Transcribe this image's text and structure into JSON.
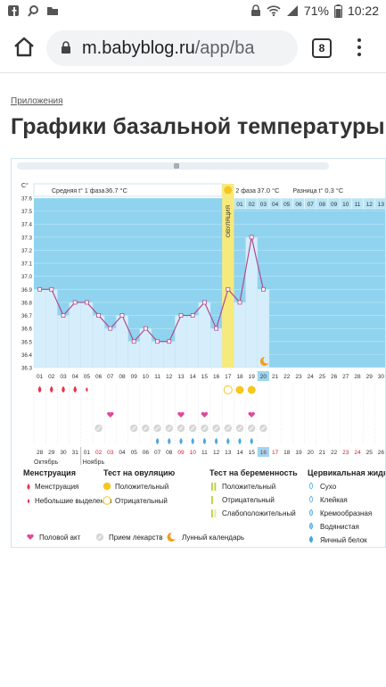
{
  "status_bar": {
    "battery": "71%",
    "time": "10:22"
  },
  "browser": {
    "url_main": "m.babyblog.ru",
    "url_rest": "/app/ba",
    "tab_count": "8"
  },
  "page": {
    "breadcrumb": "Приложения",
    "title": "Графики базальной температуры"
  },
  "chart_data": {
    "type": "line",
    "y_unit": "C°",
    "ylim": [
      36.3,
      37.6
    ],
    "y_ticks": [
      "37.6",
      "37.5",
      "37.4",
      "37.3",
      "37.2",
      "37.1",
      "37.0",
      "36.9",
      "36.8",
      "36.7",
      "36.6",
      "36.5",
      "36.4",
      "36.3"
    ],
    "phase1_label": "Средняя t° 1 фаза",
    "phase1_value": "36.7 °C",
    "phase2_label": "2 фаза",
    "phase2_value": "37.0 °C",
    "diff_label": "Разница t°",
    "diff_value": "0.3 °C",
    "ovulation_label": "ОВУЛЯЦИЯ",
    "ovulation_day_index": 16,
    "current_day_index": 19,
    "cycle_days": [
      "01",
      "02",
      "03",
      "04",
      "05",
      "06",
      "07",
      "08",
      "09",
      "10",
      "11",
      "12",
      "13",
      "14",
      "15",
      "16",
      "17",
      "18",
      "19",
      "20",
      "21",
      "22",
      "23",
      "24",
      "25",
      "26",
      "27",
      "28",
      "29",
      "30"
    ],
    "phase2_top_days": [
      "01",
      "02",
      "03",
      "04",
      "05",
      "06",
      "07",
      "08",
      "09",
      "10",
      "11",
      "12",
      "13"
    ],
    "values": [
      36.9,
      36.9,
      36.7,
      36.8,
      36.8,
      36.7,
      36.6,
      36.7,
      36.5,
      36.6,
      36.5,
      36.5,
      36.7,
      36.7,
      36.8,
      36.6,
      36.9,
      36.8,
      37.3,
      36.9
    ],
    "calendar_dates": [
      "28",
      "29",
      "30",
      "31",
      "01",
      "02",
      "03",
      "04",
      "05",
      "06",
      "07",
      "08",
      "09",
      "10",
      "11",
      "12",
      "13",
      "14",
      "15",
      "16",
      "17",
      "18",
      "19",
      "20",
      "21",
      "22",
      "23",
      "24",
      "25",
      "26"
    ],
    "calendar_weekend_idx": [
      5,
      6,
      12,
      13,
      19,
      20,
      26,
      27
    ],
    "month_oct": "Октябрь",
    "month_nov": "Ноябрь",
    "menstruation_days": [
      0,
      1,
      2,
      3
    ],
    "light_bleeding_days": [
      4
    ],
    "ovulation_test_pos": [
      17,
      18
    ],
    "ovulation_test_neg": [
      16
    ],
    "sex_days": [
      6,
      12,
      14,
      18
    ],
    "medicine_days": [
      5,
      8,
      9,
      10,
      11,
      12,
      13,
      14,
      15,
      16,
      17,
      18,
      19
    ],
    "fluid_days": [
      10,
      11,
      12,
      13,
      14,
      15,
      16,
      17,
      18
    ],
    "moon_day": 19,
    "colors": {
      "chart_bg": "#8fd3ef",
      "bar_fill": "#d6eefb",
      "line": "#b04a8f",
      "ovulation_band": "#f7ea7c",
      "highlight": "#9fd6ef",
      "blood": "#e8344a",
      "pink": "#e2479a",
      "ovu_pos": "#f5c71f",
      "preg": "#b6d43a",
      "drop": "#4ba7e0",
      "pill": "#a0a0a0",
      "moon": "#f0a020"
    }
  },
  "legend": {
    "menstruation": {
      "title": "Менструация",
      "items": [
        "Менструация",
        "Небольшие выделения"
      ]
    },
    "ovulation_test": {
      "title": "Тест на овуляцию",
      "items": [
        "Положительный",
        "Отрицательный"
      ]
    },
    "pregnancy_test": {
      "title": "Тест на беременность",
      "items": [
        "Положительный",
        "Отрицательный",
        "Слабоположительный"
      ]
    },
    "cervical": {
      "title": "Цервикальная жидкость",
      "items": [
        "Сухо",
        "Клейкая",
        "Кремообразная",
        "Водянистая",
        "Яичный белок"
      ]
    },
    "bottom": [
      "Половой акт",
      "Прием лекарств",
      "Лунный календарь"
    ]
  }
}
